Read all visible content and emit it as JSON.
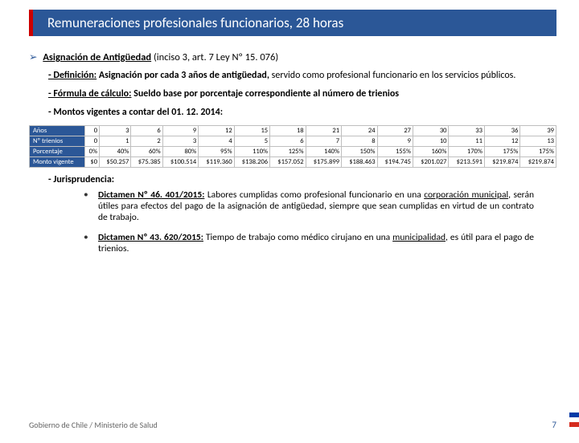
{
  "title": "Remuneraciones profesionales funcionarios, 28 horas",
  "heading": {
    "label": "Asignación de Antigüedad",
    "ref": "(inciso 3, art. 7 Ley Nº 15. 076)"
  },
  "def": {
    "lead": "- Definición:",
    "bold": "Asignación por cada 3 años de antigüedad,",
    "rest": " servido como profesional funcionario en los servicios públicos."
  },
  "formula": {
    "lead": "- Fórmula de cálculo:",
    "rest": " Sueldo base por porcentaje correspondiente al número de trienios"
  },
  "montos": "- Montos vigentes a contar del 01. 12. 2014:",
  "table": {
    "row_headers": [
      "Años",
      "Nº trienios",
      "Porcentaje",
      "Monto vigente"
    ],
    "columns": [
      {
        "anos": "0",
        "tri": "0",
        "pct": "0%",
        "monto": "$0"
      },
      {
        "anos": "3",
        "tri": "1",
        "pct": "40%",
        "monto": "$50.257"
      },
      {
        "anos": "6",
        "tri": "2",
        "pct": "60%",
        "monto": "$75.385"
      },
      {
        "anos": "9",
        "tri": "3",
        "pct": "80%",
        "monto": "$100.514"
      },
      {
        "anos": "12",
        "tri": "4",
        "pct": "95%",
        "monto": "$119.360"
      },
      {
        "anos": "15",
        "tri": "5",
        "pct": "110%",
        "monto": "$138.206"
      },
      {
        "anos": "18",
        "tri": "6",
        "pct": "125%",
        "monto": "$157.052"
      },
      {
        "anos": "21",
        "tri": "7",
        "pct": "140%",
        "monto": "$175.899"
      },
      {
        "anos": "24",
        "tri": "8",
        "pct": "150%",
        "monto": "$188.463"
      },
      {
        "anos": "27",
        "tri": "9",
        "pct": "155%",
        "monto": "$194.745"
      },
      {
        "anos": "30",
        "tri": "10",
        "pct": "160%",
        "monto": "$201.027"
      },
      {
        "anos": "33",
        "tri": "11",
        "pct": "170%",
        "monto": "$213.591"
      },
      {
        "anos": "36",
        "tri": "12",
        "pct": "175%",
        "monto": "$219.874"
      },
      {
        "anos": "39",
        "tri": "13",
        "pct": "175%",
        "monto": "$219.874"
      }
    ],
    "header_bg": "#2b5797",
    "border_color": "#bfbfbf"
  },
  "jur_label": "- Jurisprudencia:",
  "dictamen1": {
    "title": "Dictamen Nº 46. 401/2015:",
    "pre": " Labores cumplidas como profesional funcionario en una ",
    "mid_u": "corporación municipal",
    "post": ", serán útiles para efectos del pago de la asignación de antigüedad, siempre que sean cumplidas en virtud de un contrato de trabajo."
  },
  "dictamen2": {
    "title": "Dictamen Nº 43. 620/2015:",
    "pre": " Tiempo de trabajo como médico cirujano en una ",
    "mid_u": "municipalidad",
    "post": ", es útil para el pago de trienios."
  },
  "footer": "Gobierno de Chile / Ministerio de Salud",
  "page": "7"
}
